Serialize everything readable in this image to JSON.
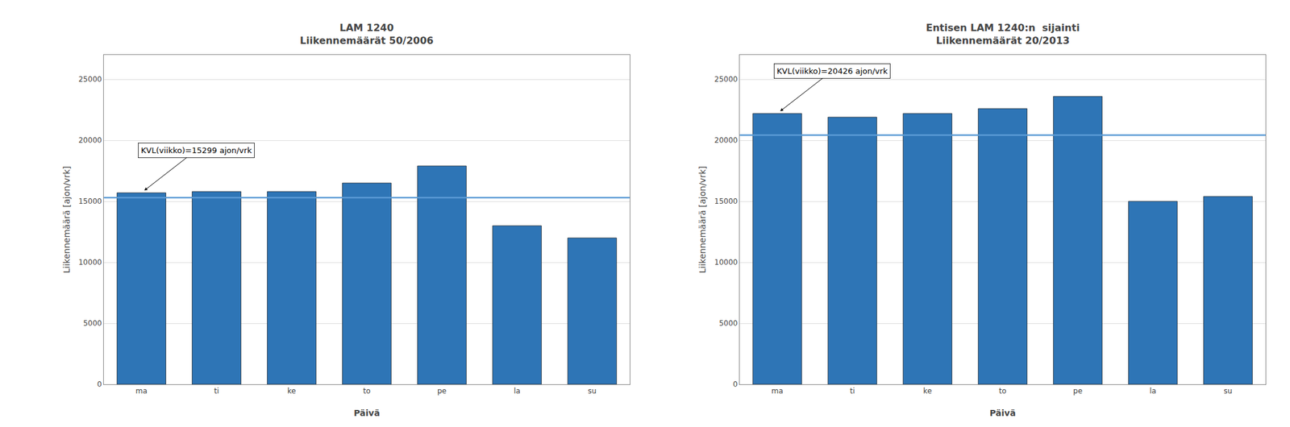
{
  "chart_data": [
    {
      "type": "bar",
      "title": "LAM 1240",
      "subtitle": "Liikennemäärät 50/2006",
      "xlabel": "Päivä",
      "ylabel": "Liikennemäärä [ajon/vrk]",
      "categories": [
        "ma",
        "ti",
        "ke",
        "to",
        "pe",
        "la",
        "su"
      ],
      "values": [
        15700,
        15800,
        15800,
        16500,
        17900,
        13000,
        12000
      ],
      "color": "#2E75B6",
      "edge_color": "#1a1a1a",
      "reference_line": {
        "value": 15299,
        "color": "#5B9BD5"
      },
      "annotation": {
        "text": "KVL(viikko)=15299 ajon/vrk",
        "category": "ma"
      },
      "ylim": [
        0,
        27000
      ],
      "yticks": [
        0,
        5000,
        10000,
        15000,
        20000,
        25000
      ],
      "grid": true
    },
    {
      "type": "bar",
      "title": "Entisen LAM 1240:n  sijainti",
      "subtitle": "Liikennemäärät 20/2013",
      "xlabel": "Päivä",
      "ylabel": "Liikennemäärä [ajon/vrk]",
      "categories": [
        "ma",
        "ti",
        "ke",
        "to",
        "pe",
        "la",
        "su"
      ],
      "values": [
        22200,
        21900,
        22200,
        22600,
        23600,
        15000,
        15400
      ],
      "color": "#2E75B6",
      "edge_color": "#1a1a1a",
      "reference_line": {
        "value": 20426,
        "color": "#5B9BD5"
      },
      "annotation": {
        "text": "KVL(viikko)=20426 ajon/vrk",
        "category": "ma"
      },
      "ylim": [
        0,
        27000
      ],
      "yticks": [
        0,
        5000,
        10000,
        15000,
        20000,
        25000
      ],
      "grid": true
    }
  ]
}
